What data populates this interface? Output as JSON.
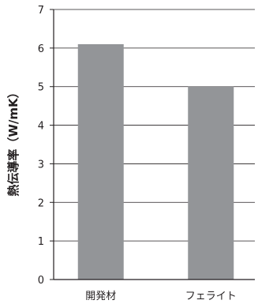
{
  "chart_data": {
    "type": "bar",
    "categories": [
      "開発材",
      "フェライト"
    ],
    "values": [
      6.1,
      5.0
    ],
    "title": "",
    "xlabel": "",
    "ylabel": "熱伝導率（W/mK）",
    "ylim": [
      0,
      7
    ],
    "yticks": [
      0,
      1,
      2,
      3,
      4,
      5,
      6,
      7
    ],
    "grid": "horizontal",
    "legend": "none",
    "colors": {
      "bar": "#939598",
      "axis": "#231f20",
      "grid": "#231f20"
    }
  }
}
